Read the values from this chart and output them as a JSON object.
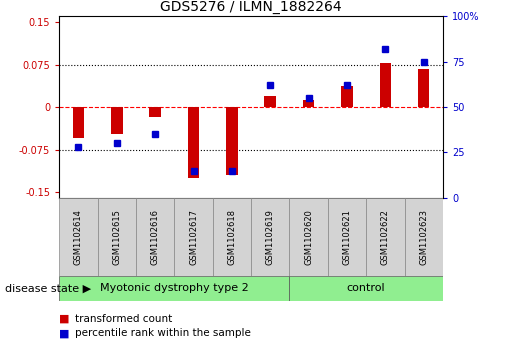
{
  "title": "GDS5276 / ILMN_1882264",
  "samples": [
    "GSM1102614",
    "GSM1102615",
    "GSM1102616",
    "GSM1102617",
    "GSM1102618",
    "GSM1102619",
    "GSM1102620",
    "GSM1102621",
    "GSM1102622",
    "GSM1102623"
  ],
  "red_values": [
    -0.055,
    -0.048,
    -0.018,
    -0.125,
    -0.12,
    0.02,
    0.013,
    0.038,
    0.078,
    0.068
  ],
  "blue_values_pct": [
    28,
    30,
    35,
    15,
    15,
    62,
    55,
    62,
    82,
    75
  ],
  "ylim_left": [
    -0.16,
    0.16
  ],
  "ylim_right": [
    0,
    100
  ],
  "left_yticks": [
    -0.15,
    -0.075,
    0,
    0.075,
    0.15
  ],
  "right_yticks": [
    0,
    25,
    50,
    75,
    100
  ],
  "left_yticklabels": [
    "-0.15",
    "-0.075",
    "0",
    "0.075",
    "0.15"
  ],
  "right_yticklabels": [
    "0",
    "25",
    "50",
    "75",
    "100%"
  ],
  "bar_width": 0.3,
  "red_color": "#cc0000",
  "blue_color": "#0000cc",
  "plot_bg": "#ffffff",
  "legend_red": "transformed count",
  "legend_blue": "percentile rank within the sample",
  "disease_state_label": "disease state",
  "group1_label": "Myotonic dystrophy type 2",
  "group1_count": 6,
  "group2_label": "control",
  "group2_count": 4,
  "group_color": "#90ee90",
  "sample_box_color": "#d3d3d3",
  "sample_box_edge": "#888888",
  "title_fontsize": 10,
  "tick_fontsize": 7,
  "sample_fontsize": 6,
  "legend_fontsize": 7.5,
  "disease_fontsize": 8
}
